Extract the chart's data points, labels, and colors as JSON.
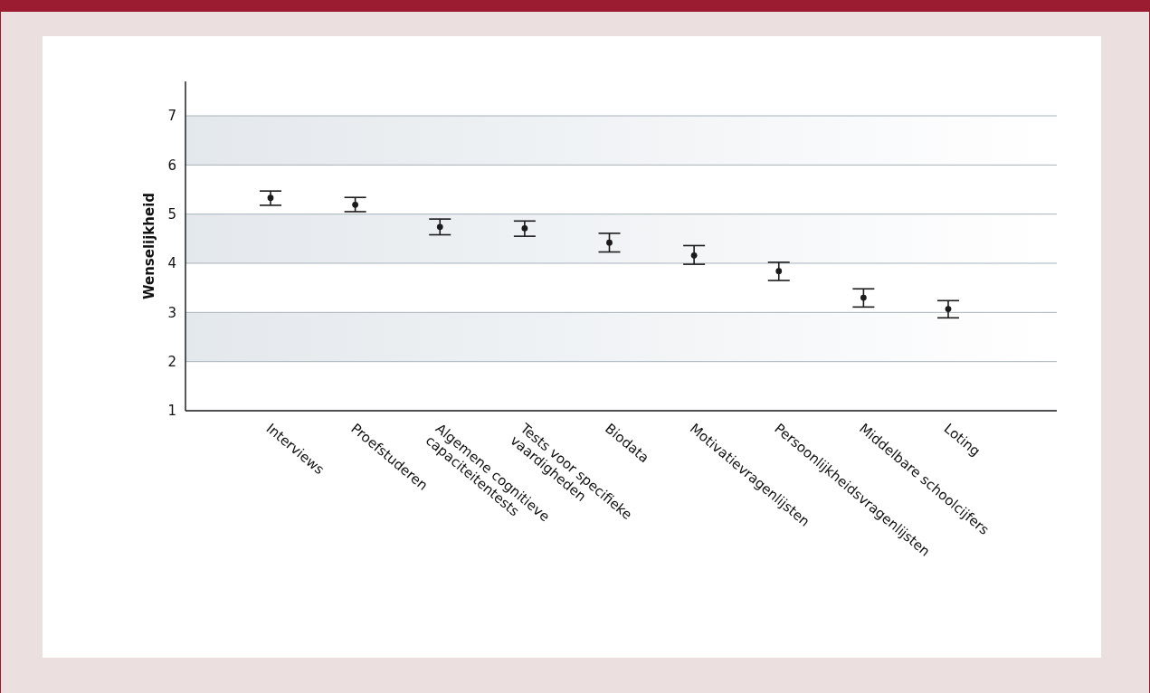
{
  "chart_data": {
    "type": "scatter",
    "ylabel": "Wenselijkheid",
    "categories": [
      "Interviews",
      "Proefstuderen",
      "Algemene cognitieve\ncapaciteitentests",
      "Tests voor specifieke\nvaardigheden",
      "Biodata",
      "Motivatievragenlijsten",
      "Persoonlijkheidsvragenlijsten",
      "Middelbare schoolcijfers",
      "Loting"
    ],
    "series": [
      {
        "color": "#1a1a1a",
        "values": [
          5.33,
          5.19,
          4.74,
          4.71,
          4.42,
          4.16,
          3.84,
          3.3,
          3.07
        ],
        "errors": [
          [
            5.18,
            5.47
          ],
          [
            5.05,
            5.34
          ],
          [
            4.58,
            4.9
          ],
          [
            4.55,
            4.86
          ],
          [
            4.23,
            4.61
          ],
          [
            3.98,
            4.36
          ],
          [
            3.65,
            4.02
          ],
          [
            3.11,
            3.48
          ],
          [
            2.89,
            3.24
          ]
        ]
      }
    ],
    "ylim": [
      1,
      7.7
    ],
    "yticks": [
      1,
      2,
      3,
      4,
      5,
      6,
      7
    ],
    "grid": "y",
    "marker": "circle",
    "bands": [
      {
        "axis": "y",
        "from": 2,
        "to": 3,
        "color": "#e3e8ec"
      },
      {
        "axis": "y",
        "from": 4,
        "to": 5,
        "color": "#e3e8ec"
      },
      {
        "axis": "y",
        "from": 6,
        "to": 7,
        "color": "#e3e8ec"
      }
    ]
  }
}
